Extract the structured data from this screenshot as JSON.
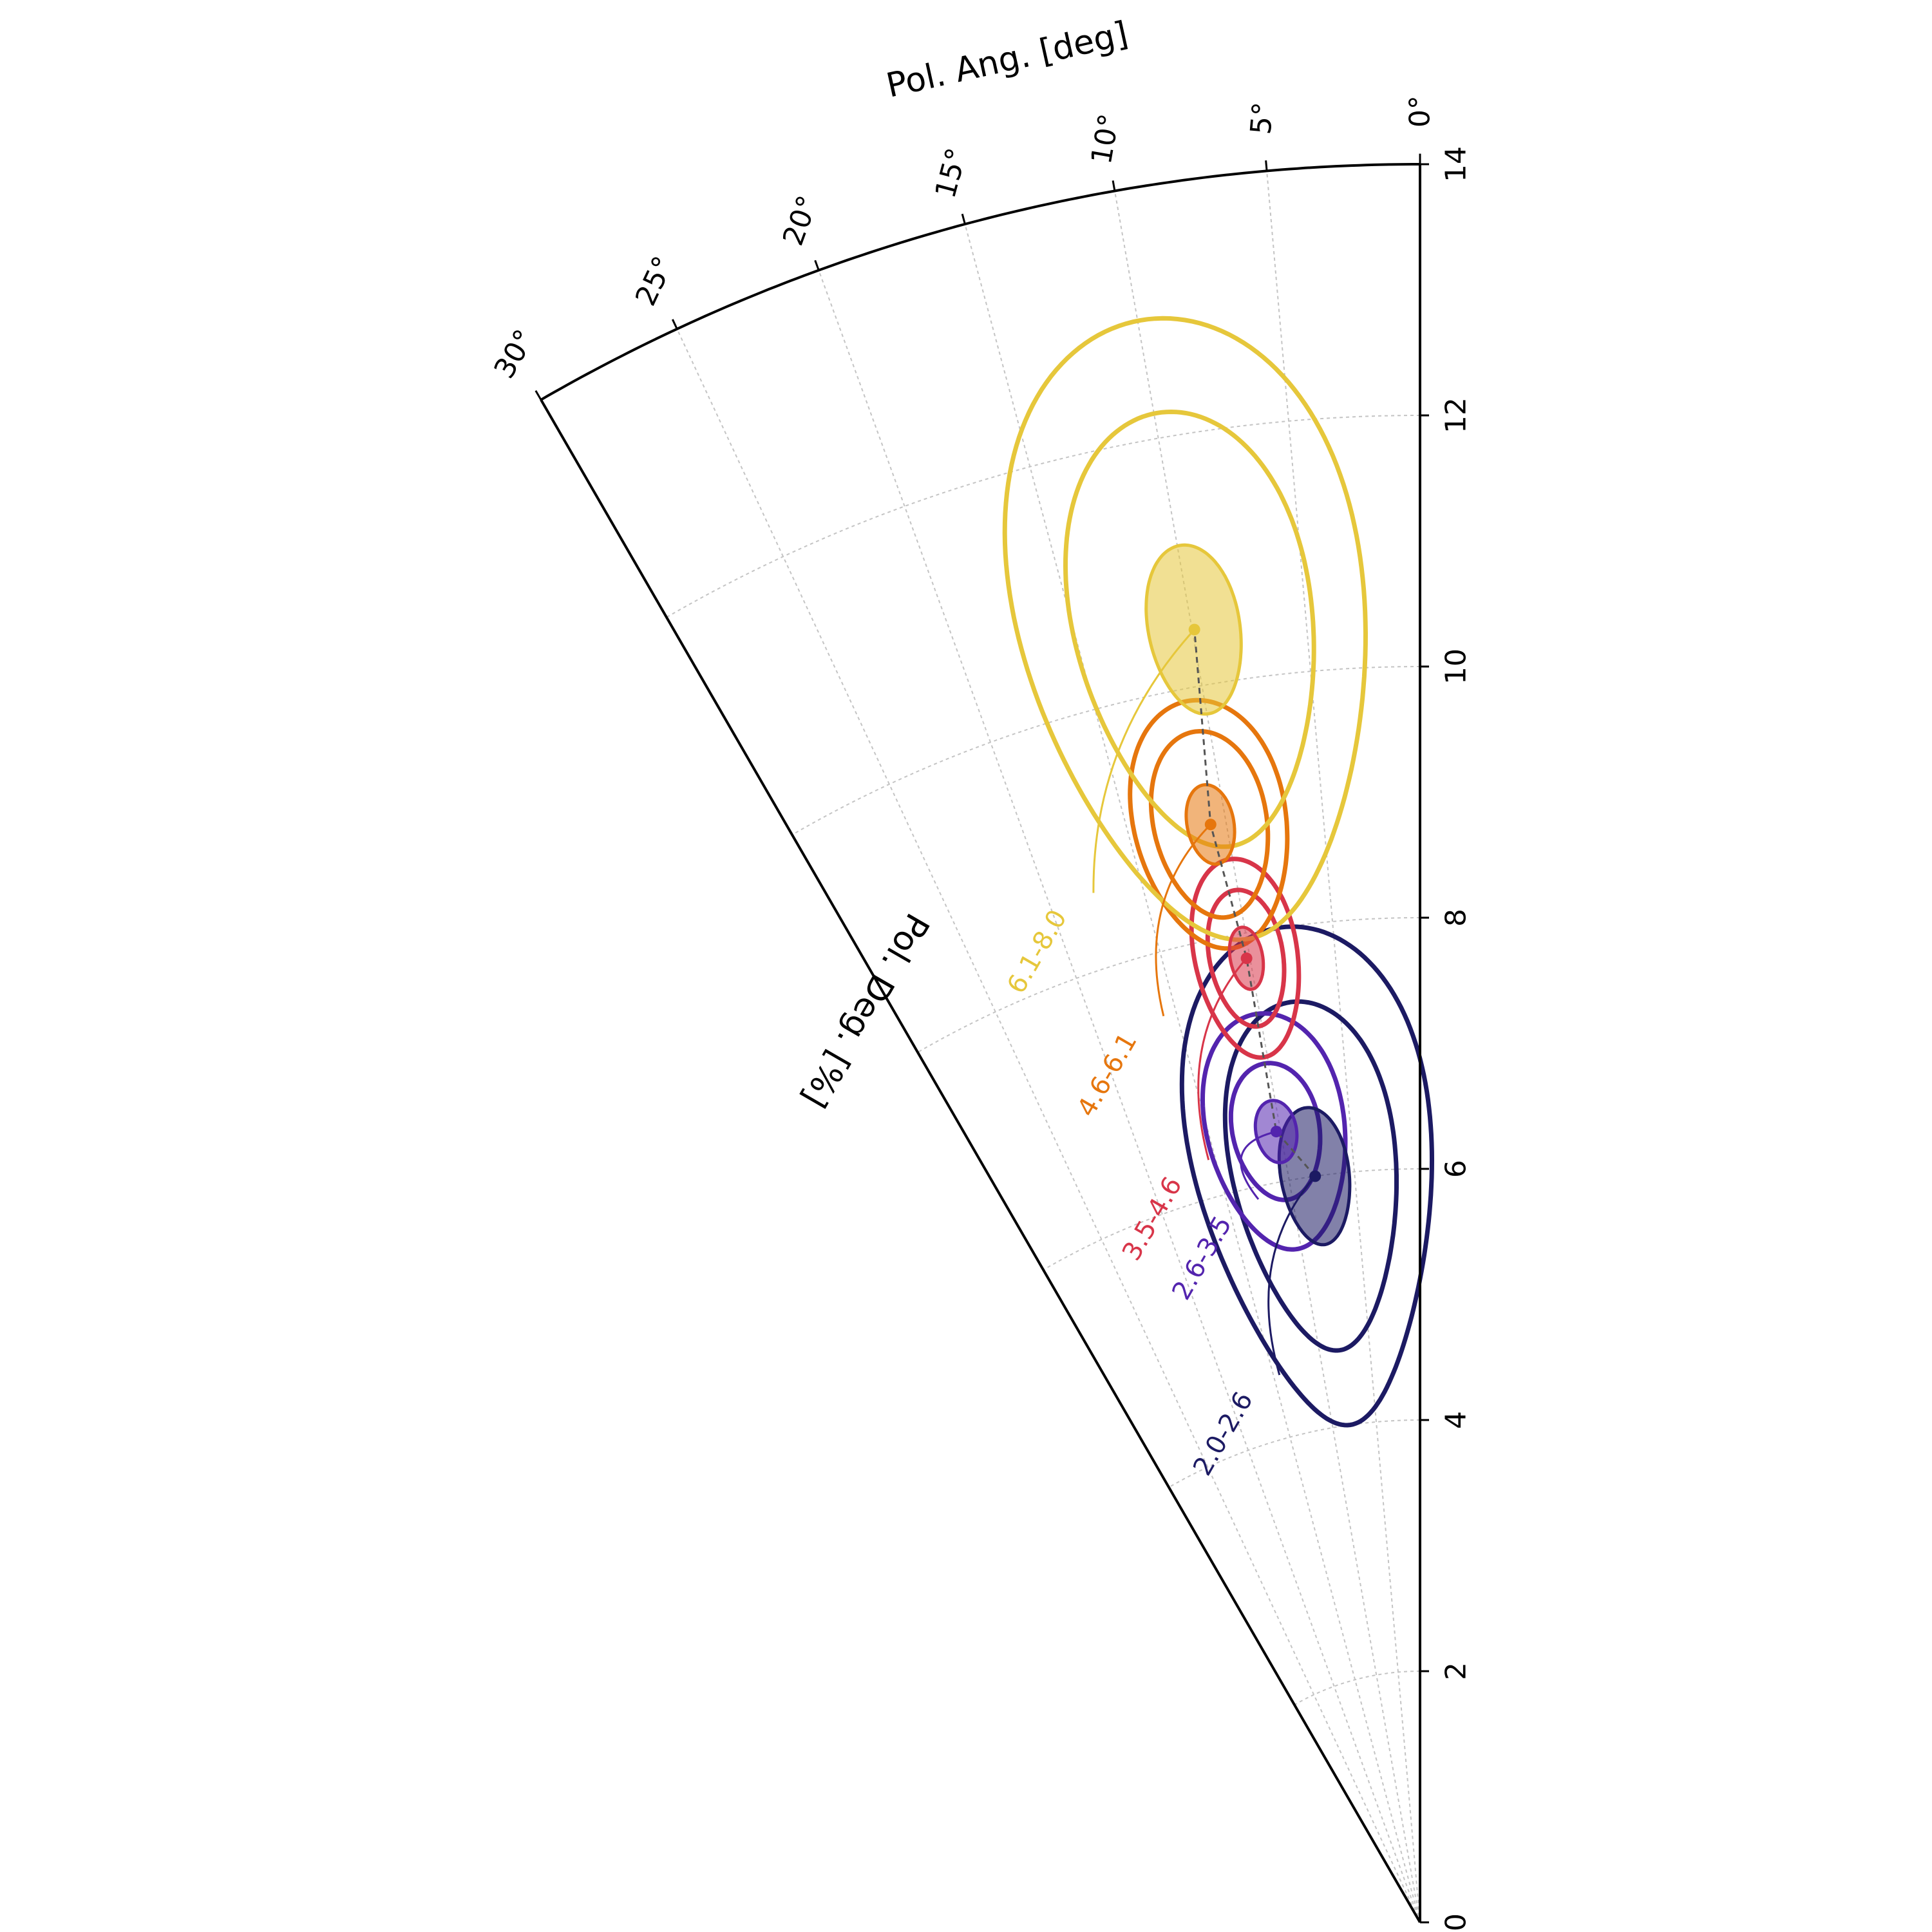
{
  "chart_data": {
    "type": "scatter",
    "projection": "polar-wedge",
    "theta_label": "Pol. Ang. [deg]",
    "r_label": "Pol. Deg. [%]",
    "theta_range": [
      0,
      30
    ],
    "r_range": [
      0,
      14
    ],
    "theta_ticks": [
      {
        "value": 0,
        "label": "0°"
      },
      {
        "value": 5,
        "label": "5°"
      },
      {
        "value": 10,
        "label": "10°"
      },
      {
        "value": 15,
        "label": "15°"
      },
      {
        "value": 20,
        "label": "20°"
      },
      {
        "value": 25,
        "label": "25°"
      },
      {
        "value": 30,
        "label": "30°"
      }
    ],
    "r_ticks": [
      {
        "value": 0,
        "label": "0"
      },
      {
        "value": 2,
        "label": "2"
      },
      {
        "value": 4,
        "label": "4"
      },
      {
        "value": 6,
        "label": "6"
      },
      {
        "value": 8,
        "label": "8"
      },
      {
        "value": 10,
        "label": "10"
      },
      {
        "value": 12,
        "label": "12"
      },
      {
        "value": 14,
        "label": "14"
      }
    ],
    "grid": true,
    "series": [
      {
        "name": "2.0-2.6",
        "color": "#1c1a63",
        "pol_deg": 6.0,
        "pol_ang": 8.0,
        "contours": [
          {
            "d_deg": 0.55,
            "d_ang": 2.6,
            "filled": true
          },
          {
            "d_deg": 1.4,
            "d_ang": 6.2,
            "filled": false
          },
          {
            "d_deg": 2.0,
            "d_ang": 8.9,
            "filled": false
          }
        ],
        "label_pol_deg": 4.5,
        "label_pol_ang": 14.4
      },
      {
        "name": "2.6-3.5",
        "color": "#5324ae",
        "pol_deg": 6.4,
        "pol_ang": 10.3,
        "contours": [
          {
            "d_deg": 0.25,
            "d_ang": 1.45,
            "filled": true
          },
          {
            "d_deg": 0.55,
            "d_ang": 3.1,
            "filled": false
          },
          {
            "d_deg": 0.95,
            "d_ang": 4.9,
            "filled": false
          }
        ],
        "label_pol_deg": 5.9,
        "label_pol_ang": 12.6
      },
      {
        "name": "3.5-4.6",
        "color": "#d83549",
        "pol_deg": 7.8,
        "pol_ang": 10.2,
        "contours": [
          {
            "d_deg": 0.25,
            "d_ang": 0.95,
            "filled": true
          },
          {
            "d_deg": 0.55,
            "d_ang": 2.15,
            "filled": false
          },
          {
            "d_deg": 0.8,
            "d_ang": 3.0,
            "filled": false
          }
        ],
        "label_pol_deg": 6.3,
        "label_pol_ang": 15.5
      },
      {
        "name": "4.6-6.1",
        "color": "#e6760d",
        "pol_deg": 8.9,
        "pol_ang": 10.8,
        "contours": [
          {
            "d_deg": 0.32,
            "d_ang": 1.2,
            "filled": true
          },
          {
            "d_deg": 0.75,
            "d_ang": 2.9,
            "filled": false
          },
          {
            "d_deg": 1.0,
            "d_ang": 3.9,
            "filled": false
          }
        ],
        "label_pol_deg": 7.5,
        "label_pol_ang": 15.8
      },
      {
        "name": "6.1-8.0",
        "color": "#e6c73b",
        "pol_deg": 10.45,
        "pol_ang": 9.9,
        "contours": [
          {
            "d_deg": 0.68,
            "d_ang": 2.0,
            "filled": true
          },
          {
            "d_deg": 1.75,
            "d_ang": 5.2,
            "filled": false
          },
          {
            "d_deg": 2.5,
            "d_ang": 7.5,
            "filled": false
          }
        ],
        "label_pol_deg": 8.6,
        "label_pol_ang": 17.6
      }
    ]
  }
}
